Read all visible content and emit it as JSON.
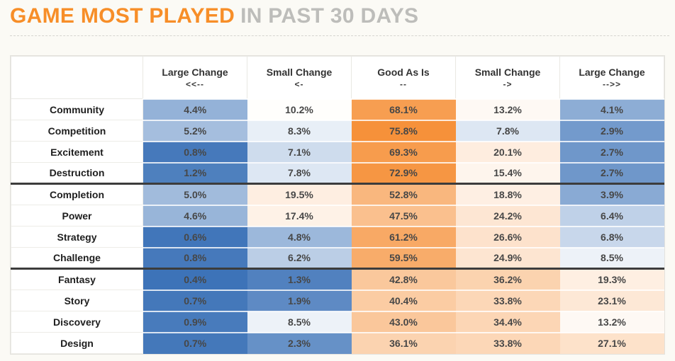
{
  "title": {
    "main": "GAME MOST PLAYED",
    "sub": "IN PAST 30 DAYS"
  },
  "colors": {
    "accent_orange": "#F78E28",
    "title_gray": "#BDBDBA",
    "heatmap_low_blue": "#3D73B8",
    "heatmap_mid_white": "#FFFFFF",
    "heatmap_high_orange": "#F6913A",
    "group_divider_dark": "#3C3C3C"
  },
  "chart_data": {
    "type": "heatmap",
    "title": "GAME MOST PLAYED IN PAST 30 DAYS",
    "value_suffix": "%",
    "columns": [
      {
        "label": "Large Change",
        "arrows": "<<--"
      },
      {
        "label": "Small Change",
        "arrows": "<-"
      },
      {
        "label": "Good As Is",
        "arrows": "--"
      },
      {
        "label": "Small Change",
        "arrows": "->"
      },
      {
        "label": "Large Change",
        "arrows": "-->>"
      }
    ],
    "rows": [
      {
        "label": "Community",
        "values": [
          4.4,
          10.2,
          68.1,
          13.2,
          4.1
        ]
      },
      {
        "label": "Competition",
        "values": [
          5.2,
          8.3,
          75.8,
          7.8,
          2.9
        ]
      },
      {
        "label": "Excitement",
        "values": [
          0.8,
          7.1,
          69.3,
          20.1,
          2.7
        ]
      },
      {
        "label": "Destruction",
        "values": [
          1.2,
          7.8,
          72.9,
          15.4,
          2.7
        ]
      },
      {
        "label": "Completion",
        "values": [
          5.0,
          19.5,
          52.8,
          18.8,
          3.9
        ]
      },
      {
        "label": "Power",
        "values": [
          4.6,
          17.4,
          47.5,
          24.2,
          6.4
        ]
      },
      {
        "label": "Strategy",
        "values": [
          0.6,
          4.8,
          61.2,
          26.6,
          6.8
        ]
      },
      {
        "label": "Challenge",
        "values": [
          0.8,
          6.2,
          59.5,
          24.9,
          8.5
        ]
      },
      {
        "label": "Fantasy",
        "values": [
          0.4,
          1.3,
          42.8,
          36.2,
          19.3
        ]
      },
      {
        "label": "Story",
        "values": [
          0.7,
          1.9,
          40.4,
          33.8,
          23.1
        ]
      },
      {
        "label": "Discovery",
        "values": [
          0.9,
          8.5,
          43.0,
          34.4,
          13.2
        ]
      },
      {
        "label": "Design",
        "values": [
          0.7,
          2.3,
          36.1,
          33.8,
          27.1
        ]
      }
    ],
    "group_starts": [
      4,
      8
    ],
    "color_scale": {
      "min_value": 0.4,
      "min_color": "#3D73B8",
      "mid_value": 9.35,
      "mid_color": "#FFFFFF",
      "max_value": 75.8,
      "max_color": "#F6913A"
    },
    "layout": {
      "legend": false,
      "grid": false
    }
  }
}
